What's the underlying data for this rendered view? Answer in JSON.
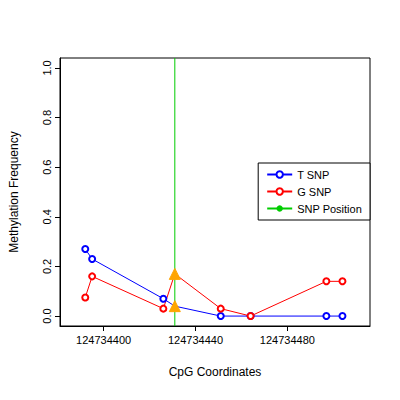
{
  "chart_data": {
    "type": "line",
    "x_label": "CpG Coordinates",
    "y_label": "Methylation Frequency",
    "xlim": [
      124734381,
      124734516
    ],
    "xticks": [
      124734400,
      124734440,
      124734480
    ],
    "ylim": [
      -0.04,
      1.04
    ],
    "yticks": [
      {
        "value": 0,
        "label": "0.0"
      },
      {
        "value": 0.2,
        "label": "0.2"
      },
      {
        "value": 0.4,
        "label": "0.4"
      },
      {
        "value": 0.6,
        "label": "0.6"
      },
      {
        "value": 0.8,
        "label": "0.8"
      },
      {
        "value": 1,
        "label": "1.0"
      }
    ],
    "grid": false,
    "legend": "right",
    "snp_marker": "triangle",
    "snp_color": "#ffa500",
    "series": [
      {
        "name": "T SNP",
        "color": "#0000ff",
        "marker": "circle",
        "x": [
          124734392,
          124734395,
          124734426,
          124734431,
          124734451,
          124734464,
          124734497,
          124734504
        ],
        "values": [
          0.27,
          0.23,
          0.07,
          0.04,
          0.0,
          0.0,
          0.0,
          0.0
        ]
      },
      {
        "name": "G SNP",
        "color": "#ff0000",
        "marker": "circle",
        "x": [
          124734392,
          124734395,
          124734426,
          124734431,
          124734451,
          124734464,
          124734497,
          124734504
        ],
        "values": [
          0.075,
          0.16,
          0.03,
          0.17,
          0.03,
          0.0,
          0.14,
          0.14
        ]
      },
      {
        "name": "SNP Position",
        "color": "#00cc00",
        "type": "vline",
        "x": [
          124734431
        ]
      }
    ]
  }
}
